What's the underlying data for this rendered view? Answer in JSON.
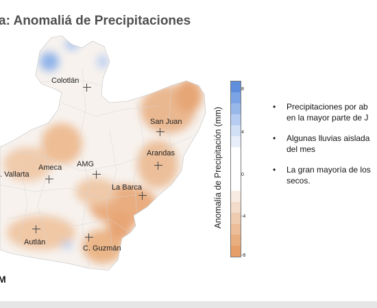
{
  "title": "a: Anomaliá de Precipitaciones",
  "map": {
    "cities": [
      {
        "name": "Colotlán"
      },
      {
        "name": "San Juan"
      },
      {
        "name": "Arandas"
      },
      {
        "name": "AMG"
      },
      {
        "name": "Ameca"
      },
      {
        "name": ". Vallarta"
      },
      {
        "name": "La Barca"
      },
      {
        "name": "Autlán"
      },
      {
        "name": "C. Guzmán"
      }
    ],
    "colorbar": {
      "label": "Anomalía de Precipitación (mm)",
      "ticks": [
        "8",
        "4",
        "0",
        "-4",
        "-8"
      ],
      "range": [
        -8,
        8
      ],
      "color_wet": "#5b8fde",
      "color_dry": "#e9a26e",
      "color_neutral": "#ffffff"
    }
  },
  "bullets": [
    {
      "line1": "Precipitaciones por ab",
      "line2": "en la mayor parte de J"
    },
    {
      "line1": "Algunas lluvias aislada",
      "line2": "del mes"
    },
    {
      "line1": "La gran mayoría de los",
      "line2": "secos."
    }
  ],
  "corner_text": "M"
}
